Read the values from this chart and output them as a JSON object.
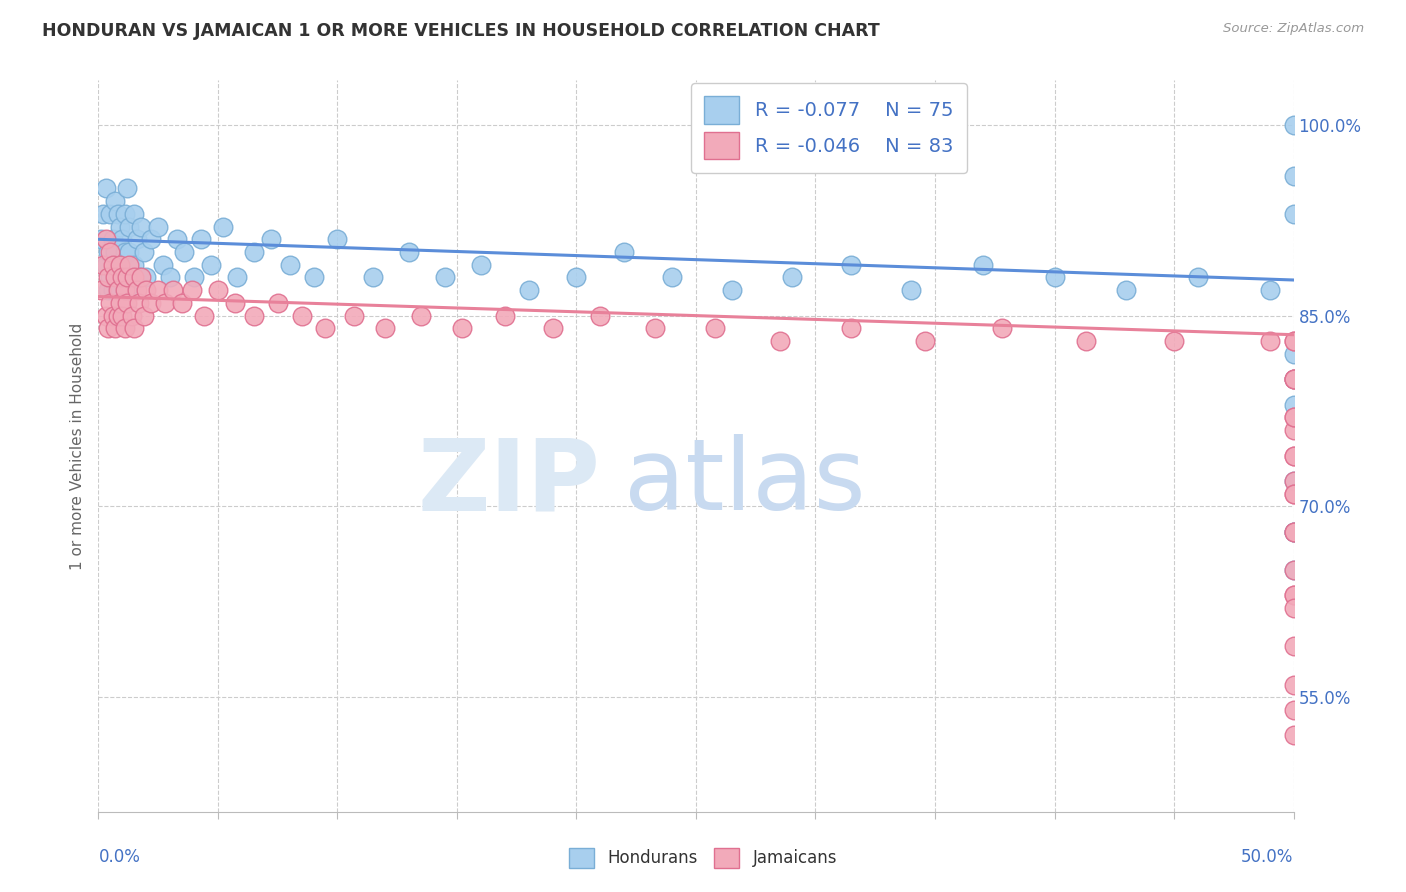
{
  "title": "HONDURAN VS JAMAICAN 1 OR MORE VEHICLES IN HOUSEHOLD CORRELATION CHART",
  "source": "Source: ZipAtlas.com",
  "ylabel": "1 or more Vehicles in Household",
  "xlim": [
    0.0,
    0.5
  ],
  "ylim": [
    0.46,
    1.035
  ],
  "blue_R": "-0.077",
  "blue_N": "75",
  "pink_R": "-0.046",
  "pink_N": "83",
  "blue_color": "#A8CFEE",
  "pink_color": "#F2AABA",
  "blue_edge_color": "#7AAED6",
  "pink_edge_color": "#E07090",
  "blue_line_color": "#5B8DD9",
  "pink_line_color": "#E8819A",
  "legend_label_blue": "Hondurans",
  "legend_label_pink": "Jamaicans",
  "blue_x": [
    0.001,
    0.002,
    0.003,
    0.003,
    0.004,
    0.004,
    0.005,
    0.005,
    0.006,
    0.006,
    0.007,
    0.007,
    0.008,
    0.008,
    0.009,
    0.009,
    0.01,
    0.01,
    0.011,
    0.011,
    0.012,
    0.012,
    0.013,
    0.013,
    0.014,
    0.015,
    0.015,
    0.016,
    0.017,
    0.018,
    0.019,
    0.02,
    0.022,
    0.025,
    0.027,
    0.03,
    0.033,
    0.036,
    0.04,
    0.043,
    0.047,
    0.052,
    0.058,
    0.065,
    0.072,
    0.08,
    0.09,
    0.1,
    0.115,
    0.13,
    0.145,
    0.16,
    0.18,
    0.2,
    0.22,
    0.24,
    0.265,
    0.29,
    0.315,
    0.34,
    0.37,
    0.4,
    0.43,
    0.46,
    0.49,
    0.5,
    0.5,
    0.5,
    0.5,
    0.5,
    0.5,
    0.5,
    0.5,
    0.5,
    0.5
  ],
  "blue_y": [
    0.91,
    0.93,
    0.89,
    0.95,
    0.9,
    0.87,
    0.93,
    0.88,
    0.91,
    0.87,
    0.94,
    0.9,
    0.93,
    0.88,
    0.92,
    0.89,
    0.91,
    0.88,
    0.93,
    0.9,
    0.95,
    0.87,
    0.92,
    0.9,
    0.88,
    0.93,
    0.89,
    0.91,
    0.88,
    0.92,
    0.9,
    0.88,
    0.91,
    0.92,
    0.89,
    0.88,
    0.91,
    0.9,
    0.88,
    0.91,
    0.89,
    0.92,
    0.88,
    0.9,
    0.91,
    0.89,
    0.88,
    0.91,
    0.88,
    0.9,
    0.88,
    0.89,
    0.87,
    0.88,
    0.9,
    0.88,
    0.87,
    0.88,
    0.89,
    0.87,
    0.89,
    0.88,
    0.87,
    0.88,
    0.87,
    0.78,
    0.8,
    0.82,
    0.68,
    0.72,
    0.65,
    1.0,
    0.93,
    0.96,
    0.68
  ],
  "pink_x": [
    0.001,
    0.002,
    0.003,
    0.003,
    0.004,
    0.004,
    0.005,
    0.005,
    0.006,
    0.006,
    0.007,
    0.007,
    0.008,
    0.008,
    0.009,
    0.009,
    0.01,
    0.01,
    0.011,
    0.011,
    0.012,
    0.012,
    0.013,
    0.014,
    0.015,
    0.015,
    0.016,
    0.017,
    0.018,
    0.019,
    0.02,
    0.022,
    0.025,
    0.028,
    0.031,
    0.035,
    0.039,
    0.044,
    0.05,
    0.057,
    0.065,
    0.075,
    0.085,
    0.095,
    0.107,
    0.12,
    0.135,
    0.152,
    0.17,
    0.19,
    0.21,
    0.233,
    0.258,
    0.285,
    0.315,
    0.346,
    0.378,
    0.413,
    0.45,
    0.49,
    0.5,
    0.5,
    0.5,
    0.5,
    0.5,
    0.5,
    0.5,
    0.5,
    0.5,
    0.5,
    0.5,
    0.5,
    0.5,
    0.5,
    0.5,
    0.5,
    0.5,
    0.5,
    0.5,
    0.5,
    0.5,
    0.5,
    0.5
  ],
  "pink_y": [
    0.87,
    0.89,
    0.85,
    0.91,
    0.88,
    0.84,
    0.9,
    0.86,
    0.89,
    0.85,
    0.88,
    0.84,
    0.87,
    0.85,
    0.89,
    0.86,
    0.88,
    0.85,
    0.87,
    0.84,
    0.88,
    0.86,
    0.89,
    0.85,
    0.88,
    0.84,
    0.87,
    0.86,
    0.88,
    0.85,
    0.87,
    0.86,
    0.87,
    0.86,
    0.87,
    0.86,
    0.87,
    0.85,
    0.87,
    0.86,
    0.85,
    0.86,
    0.85,
    0.84,
    0.85,
    0.84,
    0.85,
    0.84,
    0.85,
    0.84,
    0.85,
    0.84,
    0.84,
    0.83,
    0.84,
    0.83,
    0.84,
    0.83,
    0.83,
    0.83,
    0.8,
    0.76,
    0.72,
    0.68,
    0.63,
    0.63,
    0.59,
    0.56,
    0.54,
    0.52,
    0.83,
    0.8,
    0.77,
    0.74,
    0.71,
    0.68,
    0.65,
    0.62,
    0.83,
    0.8,
    0.77,
    0.74,
    0.71
  ]
}
